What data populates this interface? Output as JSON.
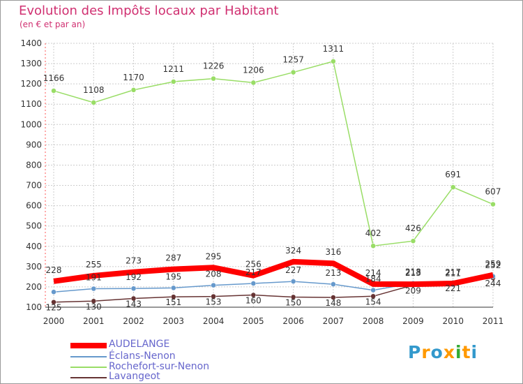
{
  "chart_data": {
    "type": "line",
    "title": "Evolution des Impôts locaux par Habitant",
    "subtitle": "(en € et par an)",
    "xlabel": "",
    "ylabel": "",
    "x": [
      "2000",
      "2001",
      "2002",
      "2003",
      "2004",
      "2005",
      "2006",
      "2007",
      "2008",
      "2009",
      "2010",
      "2011"
    ],
    "ylim": [
      100,
      1400
    ],
    "yticks": [
      100,
      200,
      300,
      400,
      500,
      600,
      700,
      800,
      900,
      1000,
      1100,
      1200,
      1300,
      1400
    ],
    "grid": true,
    "series": [
      {
        "name": "AUDELANGE",
        "color": "#ff0000",
        "values": [
          228,
          255,
          273,
          287,
          295,
          256,
          324,
          316,
          214,
          213,
          217,
          259
        ]
      },
      {
        "name": "Éclans-Nenon",
        "color": "#6699cc",
        "values": [
          175,
          191,
          192,
          195,
          208,
          217,
          227,
          213,
          184,
          218,
          211,
          252
        ]
      },
      {
        "name": "Rochefort-sur-Nenon",
        "color": "#99dd66",
        "values": [
          1166,
          1108,
          1170,
          1211,
          1226,
          1206,
          1257,
          1311,
          402,
          426,
          691,
          607
        ]
      },
      {
        "name": "Lavangeot",
        "color": "#663333",
        "values": [
          125,
          130,
          143,
          151,
          153,
          160,
          150,
          148,
          154,
          209,
          221,
          244
        ]
      }
    ],
    "data_labels": {
      "AUDELANGE": [
        "228",
        "255",
        "273",
        "287",
        "295",
        "256",
        "324",
        "316",
        "214",
        "213",
        "217",
        "259"
      ],
      "Éclans-Nenon": [
        "",
        "191",
        "192",
        "195",
        "208",
        "217",
        "227",
        "213",
        "184",
        "218",
        "211",
        "252"
      ],
      "Rochefort-sur-Nenon": [
        "1166",
        "1108",
        "1170",
        "1211",
        "1226",
        "1206",
        "1257",
        "1311",
        "402",
        "426",
        "691",
        "607"
      ],
      "Lavangeot": [
        "125",
        "130",
        "143",
        "151",
        "153",
        "160",
        "150",
        "148",
        "154",
        "209",
        "221",
        "244"
      ]
    },
    "legend_position": "bottom-left"
  },
  "logo": {
    "letters": [
      "P",
      "r",
      "o",
      "x",
      "i",
      "t",
      "i"
    ],
    "colors": [
      "#3399cc",
      "#ff9900",
      "#3399cc",
      "#ff9900",
      "#33aa33",
      "#ff9900",
      "#3399cc"
    ]
  }
}
